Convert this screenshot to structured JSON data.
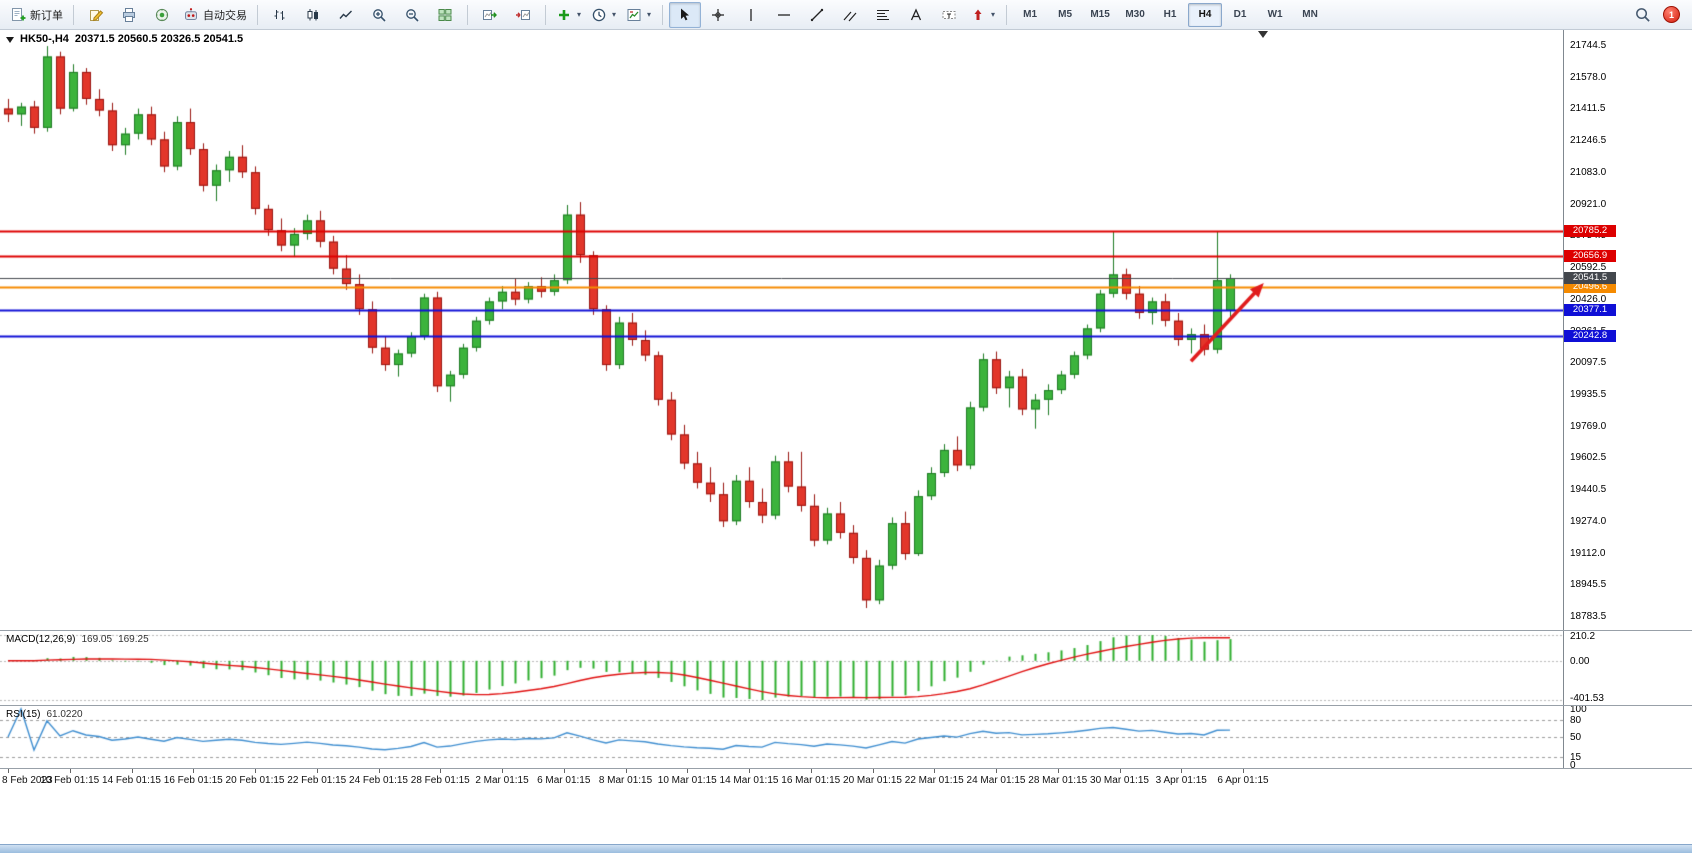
{
  "toolbar": {
    "new_order_label": "新订单",
    "auto_trading_label": "自动交易",
    "timeframes": [
      "M1",
      "M5",
      "M15",
      "M30",
      "H1",
      "H4",
      "D1",
      "W1",
      "MN"
    ],
    "active_timeframe": "H4",
    "notification_count": "1"
  },
  "chart_header": {
    "symbol_timeframe": "HK50-,H4",
    "ohlc": "20371.5 20560.5 20326.5 20541.5"
  },
  "panels": {
    "macd": {
      "name": "MACD(12,26,9)",
      "main_value": "169.05",
      "signal_value": "169.25",
      "axis": [
        "210.2",
        "0.00",
        "-401.53"
      ]
    },
    "rsi": {
      "name": "RSI(15)",
      "value": "61.0220",
      "axis": [
        "100",
        "80",
        "50",
        "15",
        "0"
      ]
    }
  },
  "chart_data": {
    "type": "candlestick",
    "symbol": "HK50-",
    "timeframe": "H4",
    "current_bar": {
      "open": 20371.5,
      "high": 20560.5,
      "low": 20326.5,
      "close": 20541.5
    },
    "price_range": {
      "top": 21744.5,
      "bottom": 18783.5
    },
    "y_axis_labels": [
      "21744.5",
      "21578.0",
      "21411.5",
      "21246.5",
      "21083.0",
      "20921.0",
      "20754.5",
      "20592.5",
      "20426.0",
      "20261.5",
      "20097.5",
      "19935.5",
      "19769.0",
      "19602.5",
      "19440.5",
      "19274.0",
      "19112.0",
      "18945.5",
      "18783.5"
    ],
    "x_axis_labels": [
      "8 Feb 2023",
      "10 Feb 01:15",
      "14 Feb 01:15",
      "16 Feb 01:15",
      "20 Feb 01:15",
      "22 Feb 01:15",
      "24 Feb 01:15",
      "28 Feb 01:15",
      "2 Mar 01:15",
      "6 Mar 01:15",
      "8 Mar 01:15",
      "10 Mar 01:15",
      "14 Mar 01:15",
      "16 Mar 01:15",
      "20 Mar 01:15",
      "22 Mar 01:15",
      "24 Mar 01:15",
      "28 Mar 01:15",
      "30 Mar 01:15",
      "3 Apr 01:15",
      "6 Apr 01:15"
    ],
    "candles": [
      [
        21420,
        21470,
        21350,
        21390
      ],
      [
        21390,
        21450,
        21330,
        21430
      ],
      [
        21430,
        21460,
        21290,
        21320
      ],
      [
        21320,
        21744,
        21300,
        21690
      ],
      [
        21690,
        21715,
        21390,
        21420
      ],
      [
        21420,
        21650,
        21405,
        21610
      ],
      [
        21610,
        21630,
        21440,
        21470
      ],
      [
        21470,
        21520,
        21380,
        21410
      ],
      [
        21410,
        21450,
        21200,
        21230
      ],
      [
        21230,
        21320,
        21180,
        21290
      ],
      [
        21290,
        21420,
        21260,
        21390
      ],
      [
        21390,
        21430,
        21230,
        21260
      ],
      [
        21260,
        21300,
        21090,
        21120
      ],
      [
        21120,
        21380,
        21100,
        21350
      ],
      [
        21350,
        21420,
        21180,
        21210
      ],
      [
        21210,
        21240,
        20990,
        21020
      ],
      [
        21020,
        21130,
        20940,
        21100
      ],
      [
        21100,
        21200,
        21040,
        21170
      ],
      [
        21170,
        21230,
        21060,
        21090
      ],
      [
        21090,
        21120,
        20870,
        20900
      ],
      [
        20900,
        20921,
        20760,
        20790
      ],
      [
        20790,
        20850,
        20680,
        20710
      ],
      [
        20710,
        20800,
        20650,
        20770
      ],
      [
        20770,
        20870,
        20740,
        20840
      ],
      [
        20840,
        20890,
        20700,
        20730
      ],
      [
        20730,
        20760,
        20560,
        20590
      ],
      [
        20590,
        20660,
        20480,
        20510
      ],
      [
        20510,
        20560,
        20350,
        20380
      ],
      [
        20380,
        20420,
        20150,
        20180
      ],
      [
        20180,
        20240,
        20060,
        20090
      ],
      [
        20090,
        20170,
        20030,
        20150
      ],
      [
        20150,
        20260,
        20130,
        20240
      ],
      [
        20240,
        20460,
        20220,
        20440
      ],
      [
        20440,
        20470,
        19950,
        19980
      ],
      [
        19980,
        20060,
        19900,
        20040
      ],
      [
        20040,
        20200,
        20020,
        20180
      ],
      [
        20180,
        20340,
        20160,
        20320
      ],
      [
        20320,
        20440,
        20300,
        20420
      ],
      [
        20420,
        20500,
        20380,
        20470
      ],
      [
        20470,
        20540,
        20400,
        20430
      ],
      [
        20430,
        20520,
        20410,
        20500
      ],
      [
        20500,
        20545,
        20440,
        20470
      ],
      [
        20470,
        20560,
        20450,
        20530
      ],
      [
        20530,
        20920,
        20510,
        20870
      ],
      [
        20870,
        20935,
        20620,
        20660
      ],
      [
        20660,
        20680,
        20350,
        20380
      ],
      [
        20380,
        20400,
        20060,
        20090
      ],
      [
        20090,
        20340,
        20070,
        20310
      ],
      [
        20310,
        20360,
        20190,
        20220
      ],
      [
        20220,
        20270,
        20110,
        20140
      ],
      [
        20140,
        20160,
        19880,
        19910
      ],
      [
        19910,
        19950,
        19700,
        19730
      ],
      [
        19730,
        19780,
        19550,
        19580
      ],
      [
        19580,
        19640,
        19450,
        19480
      ],
      [
        19480,
        19560,
        19380,
        19420
      ],
      [
        19420,
        19480,
        19250,
        19280
      ],
      [
        19280,
        19520,
        19260,
        19490
      ],
      [
        19490,
        19560,
        19350,
        19380
      ],
      [
        19380,
        19450,
        19270,
        19310
      ],
      [
        19310,
        19620,
        19290,
        19590
      ],
      [
        19590,
        19640,
        19430,
        19460
      ],
      [
        19460,
        19640,
        19330,
        19360
      ],
      [
        19360,
        19420,
        19150,
        19180
      ],
      [
        19180,
        19350,
        19160,
        19320
      ],
      [
        19320,
        19380,
        19190,
        19220
      ],
      [
        19220,
        19260,
        19060,
        19090
      ],
      [
        19090,
        19130,
        18830,
        18870
      ],
      [
        18870,
        19080,
        18850,
        19050
      ],
      [
        19050,
        19300,
        19030,
        19270
      ],
      [
        19270,
        19330,
        19080,
        19110
      ],
      [
        19110,
        19440,
        19100,
        19410
      ],
      [
        19410,
        19560,
        19390,
        19530
      ],
      [
        19530,
        19680,
        19510,
        19650
      ],
      [
        19650,
        19720,
        19540,
        19570
      ],
      [
        19570,
        19900,
        19550,
        19870
      ],
      [
        19870,
        20150,
        19850,
        20120
      ],
      [
        20120,
        20160,
        19940,
        19970
      ],
      [
        19970,
        20060,
        19870,
        20030
      ],
      [
        20030,
        20070,
        19830,
        19860
      ],
      [
        19860,
        19940,
        19760,
        19910
      ],
      [
        19910,
        19990,
        19830,
        19960
      ],
      [
        19960,
        20060,
        19940,
        20040
      ],
      [
        20040,
        20160,
        20020,
        20140
      ],
      [
        20140,
        20300,
        20120,
        20280
      ],
      [
        20280,
        20480,
        20260,
        20460
      ],
      [
        20460,
        20785,
        20440,
        20560
      ],
      [
        20560,
        20590,
        20430,
        20460
      ],
      [
        20460,
        20500,
        20330,
        20360
      ],
      [
        20360,
        20440,
        20300,
        20420
      ],
      [
        20420,
        20460,
        20290,
        20320
      ],
      [
        20320,
        20360,
        20190,
        20220
      ],
      [
        20220,
        20280,
        20150,
        20250
      ],
      [
        20250,
        20300,
        20140,
        20170
      ],
      [
        20170,
        20785,
        20150,
        20530
      ],
      [
        20371.5,
        20560.5,
        20326.5,
        20541.5
      ]
    ],
    "hlines": [
      {
        "price": 20785.2,
        "label": "20785.2",
        "color": "#dd0000",
        "width": 2,
        "role": "resistance"
      },
      {
        "price": 20656.9,
        "label": "20656.9",
        "color": "#dd0000",
        "width": 2,
        "role": "resistance"
      },
      {
        "price": 20496.6,
        "label": "20496.6",
        "color": "#f58a00",
        "width": 2,
        "role": "pivot"
      },
      {
        "price": 20377.1,
        "label": "20377.1",
        "color": "#0f0fd6",
        "width": 2,
        "role": "support"
      },
      {
        "price": 20242.8,
        "label": "20242.8",
        "color": "#0f0fd6",
        "width": 2,
        "role": "support"
      }
    ],
    "current_price_line": {
      "price": 20541.5,
      "label": "20541.5",
      "color": "#43474d",
      "width": 1
    },
    "trend_arrow": {
      "from_bar": 91,
      "from_price": 20110,
      "to_bar": 96.6,
      "to_price": 20515,
      "color": "#e01d1d"
    },
    "indicators": {
      "macd": {
        "fast": 12,
        "slow": 26,
        "signal": 9,
        "last_main": 169.05,
        "last_signal": 169.25,
        "axis_max": 210.2,
        "axis_min": -401.53
      },
      "rsi": {
        "period": 15,
        "last_value": 61.022,
        "levels": [
          80,
          50,
          15
        ]
      }
    },
    "colors": {
      "up": "#3cb33c",
      "up_border": "#1d7a22",
      "down": "#e2362a",
      "down_border": "#981510",
      "macd_hist": "#2fae2f",
      "macd_signal": "#e01010",
      "rsi_line": "#3f8ed0"
    }
  }
}
